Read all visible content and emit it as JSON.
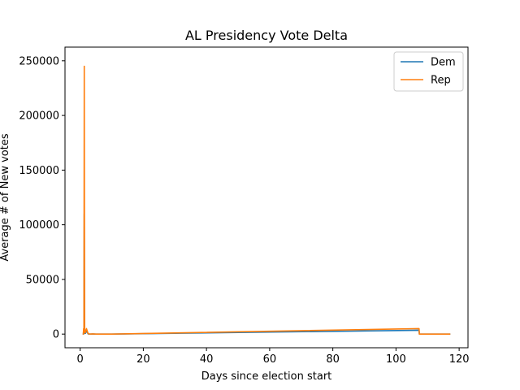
{
  "chart_data": {
    "type": "line",
    "title": "AL Presidency Vote Delta",
    "xlabel": "Days since election start",
    "ylabel": "Average # of New votes",
    "xlim": [
      -4.8,
      122.8
    ],
    "ylim": [
      -12500,
      262500
    ],
    "xticks": [
      0,
      20,
      40,
      60,
      80,
      100,
      120
    ],
    "yticks": [
      0,
      50000,
      100000,
      150000,
      200000,
      250000
    ],
    "grid": false,
    "legend": "top-right",
    "series": [
      {
        "name": "Dem",
        "color": "#1f77b4",
        "points": [
          [
            1.0,
            0
          ],
          [
            1.1,
            3000
          ],
          [
            1.2,
            1000
          ],
          [
            1.3,
            110000
          ],
          [
            1.4,
            500
          ],
          [
            1.5,
            2000
          ],
          [
            1.7,
            800
          ],
          [
            2.0,
            3000
          ],
          [
            2.5,
            200
          ],
          [
            3.0,
            0
          ],
          [
            4.0,
            100
          ],
          [
            5.0,
            0
          ],
          [
            10.0,
            0
          ],
          [
            107.3,
            3500
          ],
          [
            107.4,
            0
          ],
          [
            117.0,
            0
          ]
        ]
      },
      {
        "name": "Rep",
        "color": "#ff7f0e",
        "points": [
          [
            1.0,
            0
          ],
          [
            1.1,
            5000
          ],
          [
            1.2,
            2000
          ],
          [
            1.3,
            245000
          ],
          [
            1.4,
            1000
          ],
          [
            1.5,
            4000
          ],
          [
            1.7,
            1500
          ],
          [
            2.0,
            5000
          ],
          [
            2.5,
            500
          ],
          [
            3.0,
            0
          ],
          [
            4.0,
            200
          ],
          [
            5.0,
            0
          ],
          [
            10.0,
            0
          ],
          [
            107.3,
            5000
          ],
          [
            107.4,
            0
          ],
          [
            117.0,
            0
          ]
        ]
      }
    ]
  }
}
